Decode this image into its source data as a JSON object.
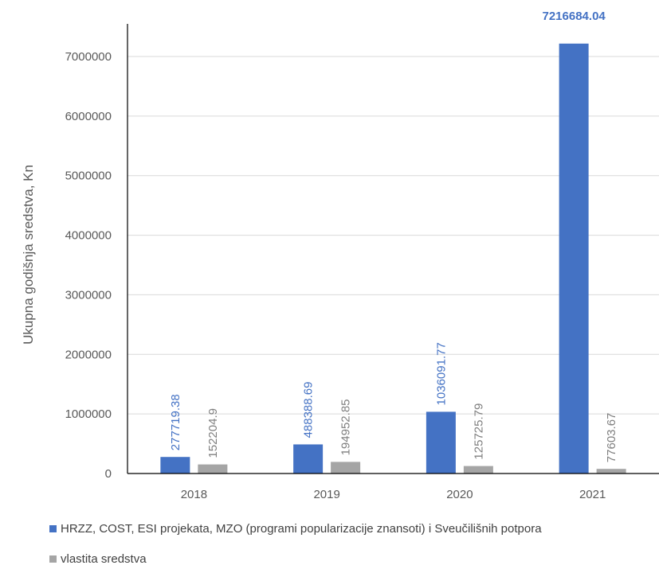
{
  "chart_data": {
    "type": "bar",
    "categories": [
      "2018",
      "2019",
      "2020",
      "2021"
    ],
    "series": [
      {
        "name": "HRZZ, COST, ESI projekata, MZO (programi popularizacije znansoti) i Sveučilišnih potpora",
        "values": [
          277719.38,
          488388.69,
          1036091.77,
          7216684.04
        ],
        "labels": [
          "277719.38",
          "488388.69",
          "1036091.77",
          "7216684.04"
        ],
        "color": "#4472C4"
      },
      {
        "name": "vlastita sredstva",
        "values": [
          152204.9,
          194952.85,
          125725.79,
          77603.67
        ],
        "labels": [
          "152204.9",
          "194952.85",
          "125725.79",
          "77603.67"
        ],
        "color": "#A5A5A5"
      }
    ],
    "ylabel": "Ukupna godišnja sredstva, Kn",
    "xlabel": "",
    "yticks": [
      "0",
      "1000000",
      "2000000",
      "3000000",
      "4000000",
      "5000000",
      "6000000",
      "7000000"
    ],
    "ylim": [
      0,
      7000000
    ],
    "grid": true,
    "legend_position": "bottom"
  }
}
